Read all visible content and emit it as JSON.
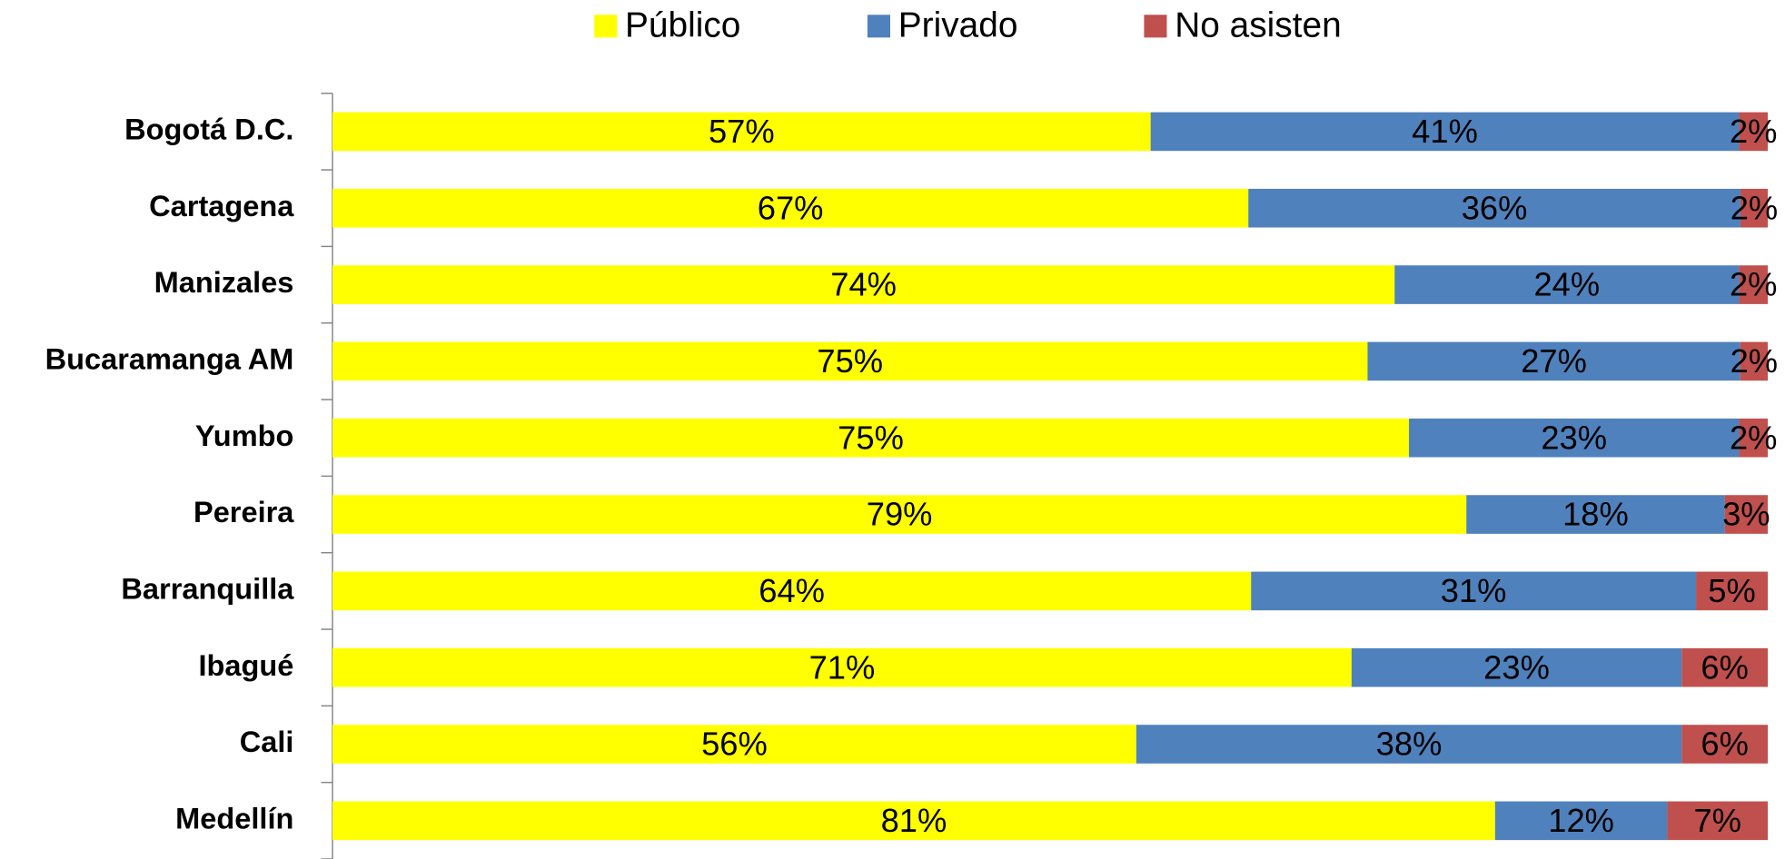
{
  "chart_data": {
    "type": "bar",
    "orientation": "horizontal",
    "stack": "percent",
    "categories": [
      "Bogotá D.C.",
      "Cartagena",
      "Manizales",
      "Bucaramanga AM",
      "Yumbo",
      "Pereira",
      "Barranquilla",
      "Ibagué",
      "Cali",
      "Medellín"
    ],
    "series": [
      {
        "name": "Público",
        "color": "#ffff00",
        "values": [
          57,
          67,
          74,
          75,
          75,
          79,
          64,
          71,
          56,
          81
        ],
        "value_labels": [
          "57%",
          "67%",
          "74%",
          "75%",
          "75%",
          "79%",
          "64%",
          "71%",
          "56%",
          "81%"
        ]
      },
      {
        "name": "Privado",
        "color": "#4f81bd",
        "values": [
          41,
          36,
          24,
          27,
          23,
          18,
          31,
          23,
          38,
          12
        ],
        "value_labels": [
          "41%",
          "36%",
          "24%",
          "27%",
          "23%",
          "18%",
          "31%",
          "23%",
          "38%",
          "12%"
        ]
      },
      {
        "name": "No asisten",
        "color": "#c0504d",
        "values": [
          2,
          2,
          2,
          2,
          2,
          3,
          5,
          6,
          6,
          7
        ],
        "value_labels": [
          "2%",
          "2%",
          "2%",
          "2%",
          "2%",
          "3%",
          "5%",
          "6%",
          "6%",
          "7%"
        ]
      }
    ],
    "legend": "top"
  }
}
